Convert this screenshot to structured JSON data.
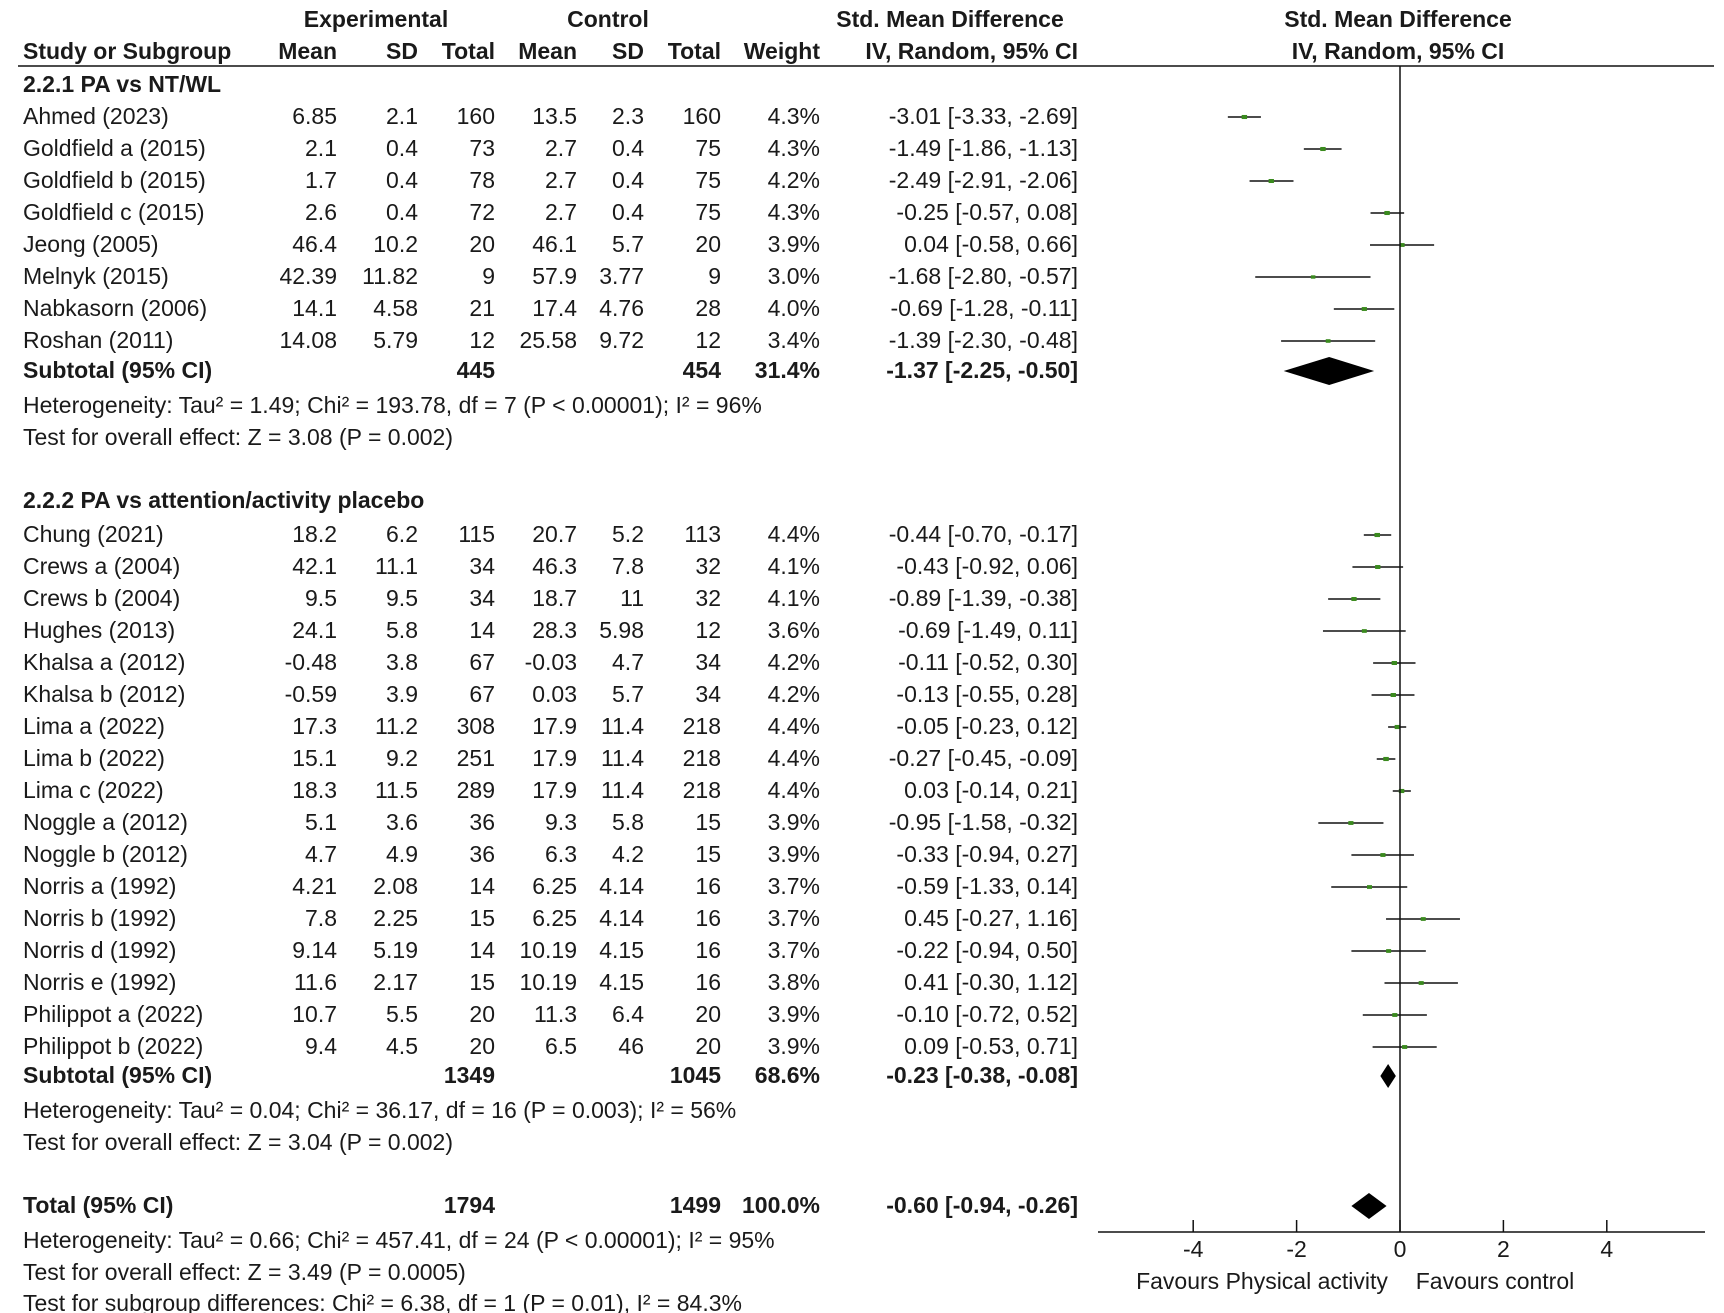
{
  "chart_data": {
    "type": "forest",
    "columns": {
      "experimental_group": "Experimental",
      "control_group": "Control",
      "effect_group": "Std. Mean Difference",
      "study": "Study or Subgroup",
      "mean": "Mean",
      "sd": "SD",
      "total": "Total",
      "weight": "Weight",
      "method": "IV, Random, 95% CI"
    },
    "plot_header": {
      "title": "Std. Mean Difference",
      "method": "IV, Random, 95% CI"
    },
    "xaxis": {
      "min": -6,
      "max": 6,
      "ticks": [
        -4,
        -2,
        0,
        2,
        4
      ],
      "tick_labels": [
        "-4",
        "-2",
        "0",
        "2",
        "4"
      ],
      "favours_left": "Favours Physical activity",
      "favours_right": "Favours control"
    },
    "groups": [
      {
        "title": "2.2.1 PA vs NT/WL",
        "studies": [
          {
            "name": "Ahmed (2023)",
            "e_mean": "6.85",
            "e_sd": "2.1",
            "e_total": "160",
            "c_mean": "13.5",
            "c_sd": "2.3",
            "c_total": "160",
            "weight": "4.3%",
            "ci_text": "-3.01 [-3.33, -2.69]",
            "est": -3.01,
            "lo": -3.33,
            "hi": -2.69
          },
          {
            "name": "Goldfield a (2015)",
            "e_mean": "2.1",
            "e_sd": "0.4",
            "e_total": "73",
            "c_mean": "2.7",
            "c_sd": "0.4",
            "c_total": "75",
            "weight": "4.3%",
            "ci_text": "-1.49 [-1.86, -1.13]",
            "est": -1.49,
            "lo": -1.86,
            "hi": -1.13
          },
          {
            "name": "Goldfield b (2015)",
            "e_mean": "1.7",
            "e_sd": "0.4",
            "e_total": "78",
            "c_mean": "2.7",
            "c_sd": "0.4",
            "c_total": "75",
            "weight": "4.2%",
            "ci_text": "-2.49 [-2.91, -2.06]",
            "est": -2.49,
            "lo": -2.91,
            "hi": -2.06
          },
          {
            "name": "Goldfield c (2015)",
            "e_mean": "2.6",
            "e_sd": "0.4",
            "e_total": "72",
            "c_mean": "2.7",
            "c_sd": "0.4",
            "c_total": "75",
            "weight": "4.3%",
            "ci_text": "-0.25 [-0.57, 0.08]",
            "est": -0.25,
            "lo": -0.57,
            "hi": 0.08
          },
          {
            "name": "Jeong (2005)",
            "e_mean": "46.4",
            "e_sd": "10.2",
            "e_total": "20",
            "c_mean": "46.1",
            "c_sd": "5.7",
            "c_total": "20",
            "weight": "3.9%",
            "ci_text": "0.04 [-0.58, 0.66]",
            "est": 0.04,
            "lo": -0.58,
            "hi": 0.66
          },
          {
            "name": "Melnyk (2015)",
            "e_mean": "42.39",
            "e_sd": "11.82",
            "e_total": "9",
            "c_mean": "57.9",
            "c_sd": "3.77",
            "c_total": "9",
            "weight": "3.0%",
            "ci_text": "-1.68 [-2.80, -0.57]",
            "est": -1.68,
            "lo": -2.8,
            "hi": -0.57
          },
          {
            "name": "Nabkasorn (2006)",
            "e_mean": "14.1",
            "e_sd": "4.58",
            "e_total": "21",
            "c_mean": "17.4",
            "c_sd": "4.76",
            "c_total": "28",
            "weight": "4.0%",
            "ci_text": "-0.69 [-1.28, -0.11]",
            "est": -0.69,
            "lo": -1.28,
            "hi": -0.11
          },
          {
            "name": "Roshan (2011)",
            "e_mean": "14.08",
            "e_sd": "5.79",
            "e_total": "12",
            "c_mean": "25.58",
            "c_sd": "9.72",
            "c_total": "12",
            "weight": "3.4%",
            "ci_text": "-1.39 [-2.30, -0.48]",
            "est": -1.39,
            "lo": -2.3,
            "hi": -0.48
          }
        ],
        "subtotal": {
          "label": "Subtotal (95% CI)",
          "e_total": "445",
          "c_total": "454",
          "weight": "31.4%",
          "ci_text": "-1.37 [-2.25, -0.50]",
          "est": -1.37,
          "lo": -2.25,
          "hi": -0.5
        },
        "heterogeneity": "Heterogeneity: Tau² = 1.49; Chi² = 193.78, df = 7 (P < 0.00001); I² = 96%",
        "overall": "Test for overall effect: Z = 3.08 (P = 0.002)"
      },
      {
        "title": "2.2.2 PA vs attention/activity placebo",
        "studies": [
          {
            "name": "Chung (2021)",
            "e_mean": "18.2",
            "e_sd": "6.2",
            "e_total": "115",
            "c_mean": "20.7",
            "c_sd": "5.2",
            "c_total": "113",
            "weight": "4.4%",
            "ci_text": "-0.44 [-0.70, -0.17]",
            "est": -0.44,
            "lo": -0.7,
            "hi": -0.17
          },
          {
            "name": "Crews a (2004)",
            "e_mean": "42.1",
            "e_sd": "11.1",
            "e_total": "34",
            "c_mean": "46.3",
            "c_sd": "7.8",
            "c_total": "32",
            "weight": "4.1%",
            "ci_text": "-0.43 [-0.92, 0.06]",
            "est": -0.43,
            "lo": -0.92,
            "hi": 0.06
          },
          {
            "name": "Crews b  (2004)",
            "e_mean": "9.5",
            "e_sd": "9.5",
            "e_total": "34",
            "c_mean": "18.7",
            "c_sd": "11",
            "c_total": "32",
            "weight": "4.1%",
            "ci_text": "-0.89 [-1.39, -0.38]",
            "est": -0.89,
            "lo": -1.39,
            "hi": -0.38
          },
          {
            "name": "Hughes (2013)",
            "e_mean": "24.1",
            "e_sd": "5.8",
            "e_total": "14",
            "c_mean": "28.3",
            "c_sd": "5.98",
            "c_total": "12",
            "weight": "3.6%",
            "ci_text": "-0.69 [-1.49, 0.11]",
            "est": -0.69,
            "lo": -1.49,
            "hi": 0.11
          },
          {
            "name": "Khalsa a (2012)",
            "e_mean": "-0.48",
            "e_sd": "3.8",
            "e_total": "67",
            "c_mean": "-0.03",
            "c_sd": "4.7",
            "c_total": "34",
            "weight": "4.2%",
            "ci_text": "-0.11 [-0.52, 0.30]",
            "est": -0.11,
            "lo": -0.52,
            "hi": 0.3
          },
          {
            "name": "Khalsa b (2012)",
            "e_mean": "-0.59",
            "e_sd": "3.9",
            "e_total": "67",
            "c_mean": "0.03",
            "c_sd": "5.7",
            "c_total": "34",
            "weight": "4.2%",
            "ci_text": "-0.13 [-0.55, 0.28]",
            "est": -0.13,
            "lo": -0.55,
            "hi": 0.28
          },
          {
            "name": "Lima a (2022)",
            "e_mean": "17.3",
            "e_sd": "11.2",
            "e_total": "308",
            "c_mean": "17.9",
            "c_sd": "11.4",
            "c_total": "218",
            "weight": "4.4%",
            "ci_text": "-0.05 [-0.23, 0.12]",
            "est": -0.05,
            "lo": -0.23,
            "hi": 0.12
          },
          {
            "name": "Lima b (2022)",
            "e_mean": "15.1",
            "e_sd": "9.2",
            "e_total": "251",
            "c_mean": "17.9",
            "c_sd": "11.4",
            "c_total": "218",
            "weight": "4.4%",
            "ci_text": "-0.27 [-0.45, -0.09]",
            "est": -0.27,
            "lo": -0.45,
            "hi": -0.09
          },
          {
            "name": "Lima c (2022)",
            "e_mean": "18.3",
            "e_sd": "11.5",
            "e_total": "289",
            "c_mean": "17.9",
            "c_sd": "11.4",
            "c_total": "218",
            "weight": "4.4%",
            "ci_text": "0.03 [-0.14, 0.21]",
            "est": 0.03,
            "lo": -0.14,
            "hi": 0.21
          },
          {
            "name": "Noggle a (2012)",
            "e_mean": "5.1",
            "e_sd": "3.6",
            "e_total": "36",
            "c_mean": "9.3",
            "c_sd": "5.8",
            "c_total": "15",
            "weight": "3.9%",
            "ci_text": "-0.95 [-1.58, -0.32]",
            "est": -0.95,
            "lo": -1.58,
            "hi": -0.32
          },
          {
            "name": "Noggle b (2012)",
            "e_mean": "4.7",
            "e_sd": "4.9",
            "e_total": "36",
            "c_mean": "6.3",
            "c_sd": "4.2",
            "c_total": "15",
            "weight": "3.9%",
            "ci_text": "-0.33 [-0.94, 0.27]",
            "est": -0.33,
            "lo": -0.94,
            "hi": 0.27
          },
          {
            "name": "Norris a (1992)",
            "e_mean": "4.21",
            "e_sd": "2.08",
            "e_total": "14",
            "c_mean": "6.25",
            "c_sd": "4.14",
            "c_total": "16",
            "weight": "3.7%",
            "ci_text": "-0.59 [-1.33, 0.14]",
            "est": -0.59,
            "lo": -1.33,
            "hi": 0.14
          },
          {
            "name": "Norris b (1992)",
            "e_mean": "7.8",
            "e_sd": "2.25",
            "e_total": "15",
            "c_mean": "6.25",
            "c_sd": "4.14",
            "c_total": "16",
            "weight": "3.7%",
            "ci_text": "0.45 [-0.27, 1.16]",
            "est": 0.45,
            "lo": -0.27,
            "hi": 1.16
          },
          {
            "name": "Norris d (1992)",
            "e_mean": "9.14",
            "e_sd": "5.19",
            "e_total": "14",
            "c_mean": "10.19",
            "c_sd": "4.15",
            "c_total": "16",
            "weight": "3.7%",
            "ci_text": "-0.22 [-0.94, 0.50]",
            "est": -0.22,
            "lo": -0.94,
            "hi": 0.5
          },
          {
            "name": "Norris e (1992)",
            "e_mean": "11.6",
            "e_sd": "2.17",
            "e_total": "15",
            "c_mean": "10.19",
            "c_sd": "4.15",
            "c_total": "16",
            "weight": "3.8%",
            "ci_text": "0.41 [-0.30, 1.12]",
            "est": 0.41,
            "lo": -0.3,
            "hi": 1.12
          },
          {
            "name": "Philippot a (2022)",
            "e_mean": "10.7",
            "e_sd": "5.5",
            "e_total": "20",
            "c_mean": "11.3",
            "c_sd": "6.4",
            "c_total": "20",
            "weight": "3.9%",
            "ci_text": "-0.10 [-0.72, 0.52]",
            "est": -0.1,
            "lo": -0.72,
            "hi": 0.52
          },
          {
            "name": "Philippot b (2022)",
            "e_mean": "9.4",
            "e_sd": "4.5",
            "e_total": "20",
            "c_mean": "6.5",
            "c_sd": "46",
            "c_total": "20",
            "weight": "3.9%",
            "ci_text": "0.09 [-0.53, 0.71]",
            "est": 0.09,
            "lo": -0.53,
            "hi": 0.71
          }
        ],
        "subtotal": {
          "label": "Subtotal (95% CI)",
          "e_total": "1349",
          "c_total": "1045",
          "weight": "68.6%",
          "ci_text": "-0.23 [-0.38, -0.08]",
          "est": -0.23,
          "lo": -0.38,
          "hi": -0.08
        },
        "heterogeneity": "Heterogeneity: Tau² = 0.04; Chi² = 36.17, df = 16 (P = 0.003); I² = 56%",
        "overall": "Test for overall effect: Z = 3.04 (P = 0.002)"
      }
    ],
    "total": {
      "label": "Total (95% CI)",
      "e_total": "1794",
      "c_total": "1499",
      "weight": "100.0%",
      "ci_text": "-0.60 [-0.94, -0.26]",
      "est": -0.6,
      "lo": -0.94,
      "hi": -0.26,
      "heterogeneity": "Heterogeneity: Tau² = 0.66; Chi² = 457.41, df = 24 (P < 0.00001); I² = 95%",
      "overall": "Test for overall effect: Z = 3.49 (P = 0.0005)",
      "subgroup_diff": "Test for subgroup differences: Chi² = 6.38, df = 1 (P = 0.01), I² = 84.3%"
    },
    "colors": {
      "point": "#3a8a1e",
      "text": "#1a1a1a"
    }
  }
}
